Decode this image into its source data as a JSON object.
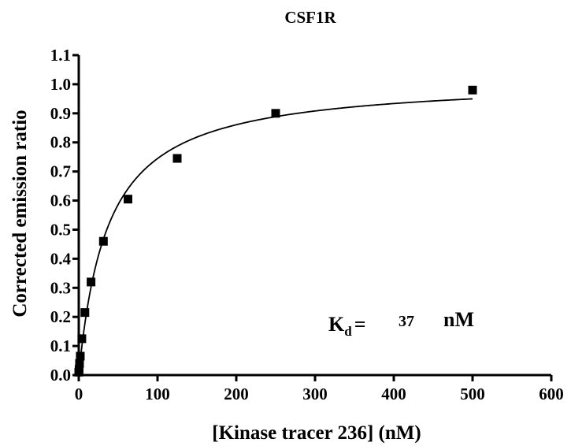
{
  "chart_data": {
    "type": "scatter",
    "title": "CSF1R",
    "xlabel": "[Kinase tracer 236] (nM)",
    "ylabel": "Corrected emission ratio",
    "xlim": [
      0,
      600
    ],
    "ylim": [
      0,
      1.1
    ],
    "xticks": [
      "0",
      "100",
      "200",
      "300",
      "400",
      "500",
      "600"
    ],
    "yticks": [
      "0.0",
      "0.1",
      "0.2",
      "0.3",
      "0.4",
      "0.5",
      "0.6",
      "0.7",
      "0.8",
      "0.9",
      "1.0",
      "1.1"
    ],
    "grid": false,
    "series": [
      {
        "marker": "square",
        "color": "#000000",
        "x": [
          0,
          0.49,
          0.98,
          1.95,
          3.9,
          7.8,
          15.6,
          31.3,
          62.5,
          125,
          250,
          500
        ],
        "y": [
          0.01,
          0.02,
          0.04,
          0.065,
          0.125,
          0.215,
          0.32,
          0.46,
          0.605,
          0.745,
          0.9,
          0.98
        ]
      }
    ],
    "fit": {
      "model": "one-site binding",
      "kd": 37,
      "bmax": 1.02,
      "color": "#000000"
    },
    "annotation": {
      "k": "K",
      "sub": "d",
      "eq": "=",
      "value": "37",
      "unit": "nM"
    }
  }
}
